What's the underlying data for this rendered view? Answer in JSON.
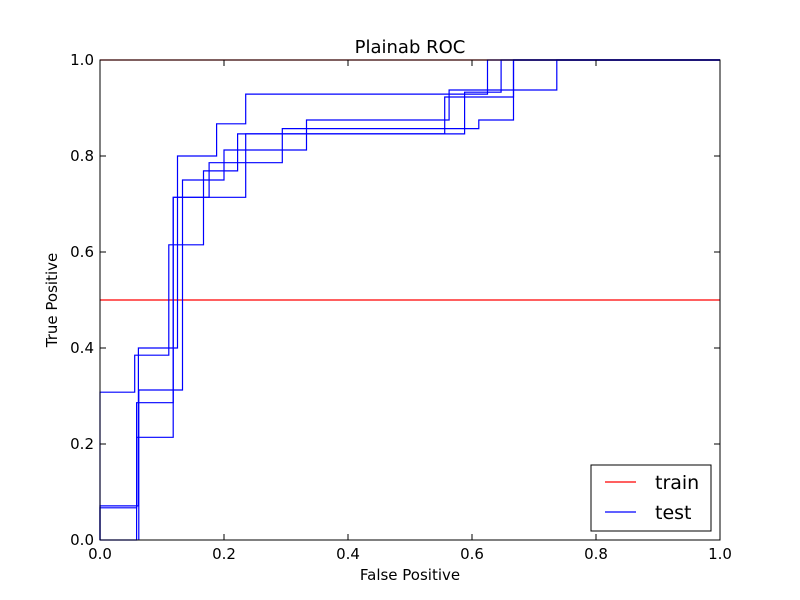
{
  "chart_data": {
    "type": "line",
    "title": "Plainab ROC",
    "xlabel": "False Positive",
    "ylabel": "True Positive",
    "xlim": [
      0.0,
      1.0
    ],
    "ylim": [
      0.0,
      1.0
    ],
    "x_ticks": [
      "0.0",
      "0.2",
      "0.4",
      "0.6",
      "0.8",
      "1.0"
    ],
    "y_ticks": [
      "0.0",
      "0.2",
      "0.4",
      "0.6",
      "0.8",
      "1.0"
    ],
    "grid": false,
    "legend_position": "lower-right",
    "legend": [
      {
        "label": "train",
        "color": "#ff0000"
      },
      {
        "label": "test",
        "color": "#0000ff"
      }
    ],
    "series": [
      {
        "group": "train",
        "color": "#ff0000",
        "points": [
          [
            0,
            0.5
          ],
          [
            1,
            0.5
          ]
        ]
      },
      {
        "group": "train",
        "color": "#ff0000",
        "points": [
          [
            0,
            1.0
          ],
          [
            1,
            1.0
          ]
        ]
      },
      {
        "group": "test",
        "color": "#0000ff",
        "points": [
          [
            0,
            0
          ],
          [
            0,
            0.308
          ],
          [
            0.056,
            0.308
          ],
          [
            0.056,
            0.385
          ],
          [
            0.111,
            0.385
          ],
          [
            0.111,
            0.615
          ],
          [
            0.167,
            0.615
          ],
          [
            0.167,
            0.769
          ],
          [
            0.222,
            0.769
          ],
          [
            0.222,
            0.846
          ],
          [
            0.556,
            0.846
          ],
          [
            0.556,
            0.923
          ],
          [
            0.667,
            0.923
          ],
          [
            0.667,
            1.0
          ],
          [
            1.0,
            1.0
          ]
        ]
      },
      {
        "group": "test",
        "color": "#0000ff",
        "points": [
          [
            0,
            0
          ],
          [
            0,
            0.071
          ],
          [
            0.062,
            0.071
          ],
          [
            0.062,
            0.4
          ],
          [
            0.125,
            0.4
          ],
          [
            0.125,
            0.8
          ],
          [
            0.188,
            0.8
          ],
          [
            0.188,
            0.867
          ],
          [
            0.235,
            0.867
          ],
          [
            0.235,
            0.929
          ],
          [
            0.625,
            0.929
          ],
          [
            0.625,
            1.0
          ],
          [
            1.0,
            1.0
          ]
        ]
      },
      {
        "group": "test",
        "color": "#0000ff",
        "points": [
          [
            0,
            0
          ],
          [
            0,
            0.067
          ],
          [
            0.059,
            0.067
          ],
          [
            0.059,
            0.286
          ],
          [
            0.118,
            0.286
          ],
          [
            0.118,
            0.714
          ],
          [
            0.235,
            0.714
          ],
          [
            0.235,
            0.846
          ],
          [
            0.588,
            0.846
          ],
          [
            0.588,
            0.933
          ],
          [
            0.647,
            0.933
          ],
          [
            0.647,
            1.0
          ],
          [
            1.0,
            1.0
          ]
        ]
      },
      {
        "group": "test",
        "color": "#0000ff",
        "points": [
          [
            0,
            0
          ],
          [
            0.059,
            0
          ],
          [
            0.059,
            0.214
          ],
          [
            0.118,
            0.214
          ],
          [
            0.118,
            0.714
          ],
          [
            0.176,
            0.714
          ],
          [
            0.176,
            0.786
          ],
          [
            0.294,
            0.786
          ],
          [
            0.294,
            0.857
          ],
          [
            0.611,
            0.857
          ],
          [
            0.611,
            0.875
          ],
          [
            0.667,
            0.875
          ],
          [
            0.667,
            1.0
          ],
          [
            1.0,
            1.0
          ]
        ]
      },
      {
        "group": "test",
        "color": "#0000ff",
        "points": [
          [
            0.0625,
            0
          ],
          [
            0.0625,
            0.3125
          ],
          [
            0.133,
            0.3125
          ],
          [
            0.133,
            0.75
          ],
          [
            0.2,
            0.75
          ],
          [
            0.2,
            0.8125
          ],
          [
            0.333,
            0.8125
          ],
          [
            0.333,
            0.875
          ],
          [
            0.563,
            0.875
          ],
          [
            0.563,
            0.9375
          ],
          [
            0.7368,
            0.9375
          ],
          [
            0.7368,
            1.0
          ],
          [
            1.0,
            1.0
          ]
        ]
      }
    ]
  }
}
